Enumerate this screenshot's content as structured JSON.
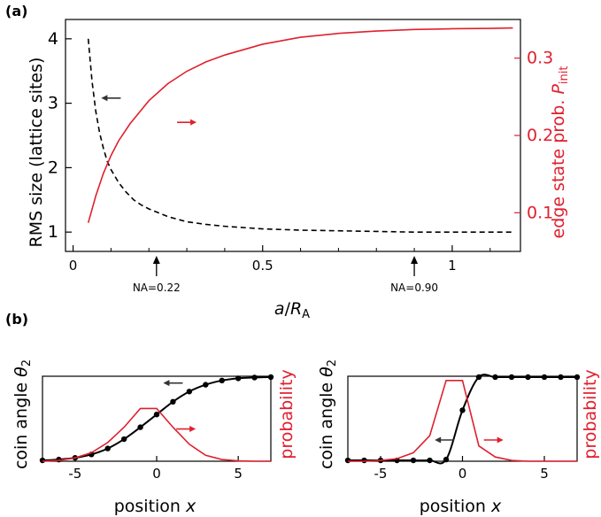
{
  "panel_a_label": "(a)",
  "panel_b_label": "(b)",
  "chart_data": [
    {
      "id": "a",
      "type": "line",
      "xlabel_main": "a",
      "xlabel_sep": "/",
      "xlabel_sym": "R",
      "xlabel_sub": "A",
      "ylabel_left": "RMS size (lattice sites)",
      "ylabel_right_main": "edge state prob. ",
      "ylabel_right_sym": "P",
      "ylabel_right_sub": "init",
      "xlim": [
        -0.02,
        1.18
      ],
      "ylim_left": [
        0.7,
        4.3
      ],
      "ylim_right": [
        0.05,
        0.35
      ],
      "x_ticks": [
        {
          "v": 0,
          "label": "0"
        },
        {
          "v": 0.5,
          "label": "0.5"
        },
        {
          "v": 1,
          "label": "1"
        }
      ],
      "x_minor_ticks": [
        0.1,
        0.2,
        0.3,
        0.4,
        0.6,
        0.7,
        0.8,
        0.9,
        1.1
      ],
      "y_left_ticks": [
        {
          "v": 1,
          "label": "1"
        },
        {
          "v": 2,
          "label": "2"
        },
        {
          "v": 3,
          "label": "3"
        },
        {
          "v": 4,
          "label": "4"
        }
      ],
      "y_right_ticks": [
        {
          "v": 0.1,
          "label": "0.1"
        },
        {
          "v": 0.2,
          "label": "0.2"
        },
        {
          "v": 0.3,
          "label": "0.3"
        }
      ],
      "series": [
        {
          "axis": "left",
          "color": "#000000",
          "style": "dashed",
          "x": [
            0.04,
            0.05,
            0.06,
            0.07,
            0.08,
            0.09,
            0.1,
            0.12,
            0.14,
            0.16,
            0.18,
            0.2,
            0.25,
            0.3,
            0.35,
            0.4,
            0.5,
            0.6,
            0.7,
            0.8,
            0.9,
            1.0,
            1.1,
            1.16
          ],
          "y": [
            4.0,
            3.34,
            2.87,
            2.54,
            2.3,
            2.1,
            1.97,
            1.77,
            1.62,
            1.5,
            1.42,
            1.36,
            1.24,
            1.16,
            1.12,
            1.09,
            1.05,
            1.03,
            1.02,
            1.01,
            1.0,
            1.0,
            1.0,
            1.0
          ]
        },
        {
          "axis": "right",
          "color": "#e0202e",
          "style": "solid",
          "x": [
            0.04,
            0.06,
            0.08,
            0.1,
            0.12,
            0.15,
            0.2,
            0.25,
            0.3,
            0.35,
            0.4,
            0.5,
            0.6,
            0.7,
            0.8,
            0.9,
            1.0,
            1.1,
            1.16
          ],
          "y": [
            0.087,
            0.122,
            0.151,
            0.174,
            0.193,
            0.215,
            0.245,
            0.267,
            0.283,
            0.295,
            0.304,
            0.318,
            0.327,
            0.332,
            0.335,
            0.337,
            0.338,
            0.3385,
            0.339
          ]
        }
      ],
      "annotations": [
        {
          "text": "NA=0.22",
          "x": 0.22
        },
        {
          "text": "NA=0.90",
          "x": 0.9
        }
      ],
      "arrows": [
        {
          "x": 0.1,
          "y": 3.08,
          "dir": "left",
          "axis": "left",
          "color": "#333333"
        },
        {
          "x": 0.3,
          "y": 0.217,
          "dir": "right",
          "axis": "right",
          "color": "#e0202e"
        }
      ]
    },
    {
      "id": "b-left",
      "type": "line",
      "xlabel_main": "position ",
      "xlabel_sym": "x",
      "ylabel_left_main": "coin angle ",
      "ylabel_left_sym": "θ",
      "ylabel_left_sub": "2",
      "ylabel_right": "probability",
      "xlim": [
        -7,
        7
      ],
      "ylim": [
        0,
        1
      ],
      "x_ticks": [
        {
          "v": -5,
          "label": "-5"
        },
        {
          "v": 0,
          "label": "0"
        },
        {
          "v": 5,
          "label": "5"
        }
      ],
      "series": [
        {
          "axis": "left",
          "color": "#000000",
          "style": "solid",
          "markers": true,
          "x": [
            -7,
            -6,
            -5,
            -4,
            -3,
            -2,
            -1,
            0,
            1,
            2,
            3,
            4,
            5,
            6,
            7
          ],
          "y": [
            0.01,
            0.02,
            0.04,
            0.08,
            0.15,
            0.26,
            0.4,
            0.55,
            0.7,
            0.82,
            0.9,
            0.95,
            0.975,
            0.985,
            0.99
          ]
        },
        {
          "axis": "right",
          "color": "#e0202e",
          "style": "solid",
          "x": [
            -7,
            -6,
            -5,
            -4,
            -3,
            -2,
            -1,
            0,
            1,
            2,
            3,
            4,
            5,
            6,
            7
          ],
          "y": [
            0.0,
            0.01,
            0.04,
            0.1,
            0.22,
            0.4,
            0.62,
            0.62,
            0.4,
            0.2,
            0.07,
            0.02,
            0.005,
            0.0,
            0.0
          ]
        }
      ],
      "arrows": [
        {
          "x": 1.0,
          "y": 0.92,
          "dir": "left",
          "color": "#333333"
        },
        {
          "x": 1.8,
          "y": 0.38,
          "dir": "right",
          "color": "#e0202e"
        }
      ]
    },
    {
      "id": "b-right",
      "type": "line",
      "xlabel_main": "position ",
      "xlabel_sym": "x",
      "ylabel_left_main": "coin angle ",
      "ylabel_left_sym": "θ",
      "ylabel_left_sub": "2",
      "ylabel_right": "probability",
      "xlim": [
        -7,
        7
      ],
      "ylim": [
        0,
        1
      ],
      "x_ticks": [
        {
          "v": -5,
          "label": "-5"
        },
        {
          "v": 0,
          "label": "0"
        },
        {
          "v": 5,
          "label": "5"
        }
      ],
      "series": [
        {
          "axis": "left",
          "color": "#000000",
          "style": "solid",
          "markers": true,
          "x": [
            -7,
            -6,
            -5,
            -4,
            -3,
            -2,
            -1,
            0,
            1,
            2,
            3,
            4,
            5,
            6,
            7
          ],
          "y": [
            0.01,
            0.01,
            0.01,
            0.01,
            0.01,
            0.01,
            0.02,
            0.6,
            0.99,
            0.99,
            0.99,
            0.99,
            0.99,
            0.99,
            0.99
          ]
        },
        {
          "axis": "right",
          "color": "#e0202e",
          "style": "solid",
          "x": [
            -7,
            -6,
            -5,
            -4,
            -3,
            -2,
            -1,
            0,
            1,
            2,
            3,
            4,
            5,
            6,
            7
          ],
          "y": [
            0.0,
            0.0,
            0.01,
            0.03,
            0.1,
            0.3,
            0.95,
            0.95,
            0.18,
            0.05,
            0.01,
            0.0,
            0.0,
            0.0,
            0.0
          ]
        }
      ],
      "arrows": [
        {
          "x": -1.1,
          "y": 0.25,
          "dir": "left",
          "color": "#333333"
        },
        {
          "x": 1.9,
          "y": 0.25,
          "dir": "right",
          "color": "#e0202e"
        }
      ]
    }
  ]
}
